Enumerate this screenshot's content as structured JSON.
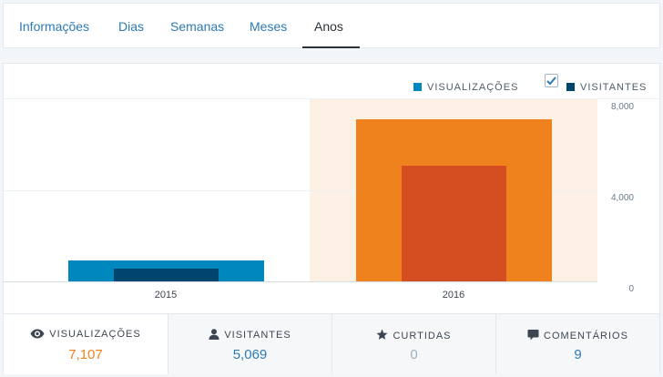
{
  "tabs": [
    {
      "label": "Informações"
    },
    {
      "label": "Dias"
    },
    {
      "label": "Semanas"
    },
    {
      "label": "Meses"
    },
    {
      "label": "Anos"
    }
  ],
  "selected_tab": "Anos",
  "legend": {
    "views_label": "VISUALIZAÇÕES",
    "visitors_label": "VISITANTES",
    "visitors_checked": true
  },
  "colors": {
    "views": "#0087be",
    "visitors": "#00456d",
    "views_highlight": "#f0821e",
    "visitors_highlight": "#d54e21",
    "link": "#2e7ab3",
    "accent": "#f0821e",
    "zero": "#a2b0bc"
  },
  "chart_data": {
    "type": "bar",
    "categories": [
      "2015",
      "2016"
    ],
    "series": [
      {
        "name": "VISUALIZAÇÕES",
        "values": [
          915,
          7107
        ]
      },
      {
        "name": "VISITANTES",
        "values": [
          560,
          5069
        ]
      }
    ],
    "highlighted_category": "2016",
    "yticks": [
      "8,000",
      "4,000",
      "0"
    ],
    "ylim": [
      0,
      8000
    ],
    "grid": true
  },
  "stats": [
    {
      "icon": "eye-icon",
      "label": "VISUALIZAÇÕES",
      "value": "7,107"
    },
    {
      "icon": "person-icon",
      "label": "VISITANTES",
      "value": "5,069"
    },
    {
      "icon": "star-icon",
      "label": "CURTIDAS",
      "value": "0"
    },
    {
      "icon": "comment-icon",
      "label": "COMENTÁRIOS",
      "value": "9"
    }
  ]
}
